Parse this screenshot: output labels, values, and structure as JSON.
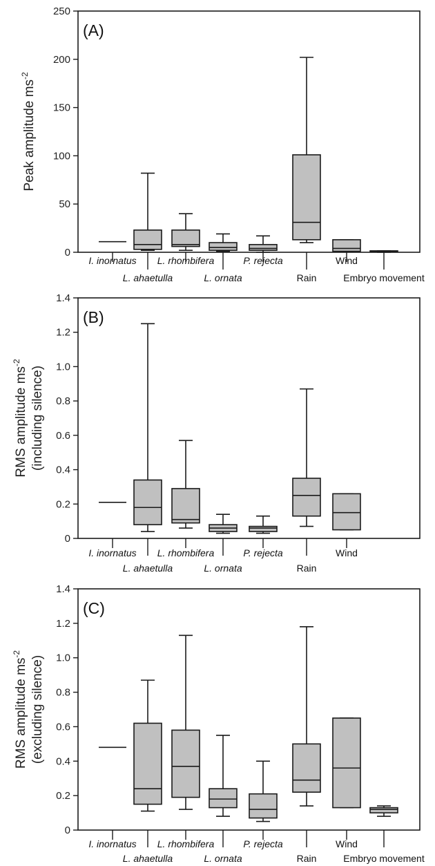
{
  "chart_data": [
    {
      "type": "box",
      "panel_label": "(A)",
      "ylabel_line1": "Peak amplitude ms",
      "ylabel_sup": "-2",
      "ylabel_line2": "",
      "ylim": [
        0,
        250
      ],
      "yticks": [
        0,
        50,
        100,
        150,
        200,
        250
      ],
      "ytick_labels": [
        "0",
        "50",
        "100",
        "150",
        "200",
        "250"
      ],
      "categories": [
        {
          "label": "I. inornatus",
          "italic": true,
          "row": "top"
        },
        {
          "label": "L. ahaetulla",
          "italic": true,
          "row": "bottom"
        },
        {
          "label": "L. rhombifera",
          "italic": true,
          "row": "top"
        },
        {
          "label": "L. ornata",
          "italic": true,
          "row": "bottom"
        },
        {
          "label": "P. rejecta",
          "italic": true,
          "row": "top"
        },
        {
          "label": "Rain",
          "italic": false,
          "row": "bottom"
        },
        {
          "label": "Wind",
          "italic": false,
          "row": "top"
        },
        {
          "label": "Embryo movement",
          "italic": false,
          "row": "bottom"
        }
      ],
      "boxes": [
        {
          "min": 11,
          "q1": 11,
          "median": 11,
          "q3": 11,
          "max": 11,
          "line_only": true
        },
        {
          "min": 2,
          "q1": 3,
          "median": 8,
          "q3": 23,
          "max": 82
        },
        {
          "min": 2,
          "q1": 6,
          "median": 8,
          "q3": 23,
          "max": 40
        },
        {
          "min": 1,
          "q1": 2,
          "median": 5,
          "q3": 10,
          "max": 19
        },
        {
          "min": 0,
          "q1": 2,
          "median": 4,
          "q3": 8,
          "max": 17
        },
        {
          "min": 10,
          "q1": 13,
          "median": 31,
          "q3": 101,
          "max": 202
        },
        {
          "min": 1,
          "q1": 1,
          "median": 4,
          "q3": 13,
          "max": 13
        },
        {
          "min": 0,
          "q1": 0.5,
          "median": 1,
          "q3": 1.5,
          "max": 1.5
        }
      ]
    },
    {
      "type": "box",
      "panel_label": "(B)",
      "ylabel_line1": "RMS amplitude ms",
      "ylabel_sup": "-2",
      "ylabel_line2": "(including silence)",
      "ylim": [
        0,
        1.4
      ],
      "yticks": [
        0,
        0.2,
        0.4,
        0.6,
        0.8,
        1.0,
        1.2,
        1.4
      ],
      "ytick_labels": [
        "0",
        "0.2",
        "0.4",
        "0.6",
        "0.8",
        "1.0",
        "1.2",
        "1.4"
      ],
      "categories": [
        {
          "label": "I. inornatus",
          "italic": true,
          "row": "top"
        },
        {
          "label": "L. ahaetulla",
          "italic": true,
          "row": "bottom"
        },
        {
          "label": "L. rhombifera",
          "italic": true,
          "row": "top"
        },
        {
          "label": "L. ornata",
          "italic": true,
          "row": "bottom"
        },
        {
          "label": "P. rejecta",
          "italic": true,
          "row": "top"
        },
        {
          "label": "Rain",
          "italic": false,
          "row": "bottom"
        },
        {
          "label": "Wind",
          "italic": false,
          "row": "top"
        }
      ],
      "boxes": [
        {
          "min": 0.21,
          "q1": 0.21,
          "median": 0.21,
          "q3": 0.21,
          "max": 0.21,
          "line_only": true
        },
        {
          "min": 0.04,
          "q1": 0.08,
          "median": 0.18,
          "q3": 0.34,
          "max": 1.25
        },
        {
          "min": 0.06,
          "q1": 0.09,
          "median": 0.11,
          "q3": 0.29,
          "max": 0.57
        },
        {
          "min": 0.03,
          "q1": 0.04,
          "median": 0.06,
          "q3": 0.08,
          "max": 0.14
        },
        {
          "min": 0.03,
          "q1": 0.04,
          "median": 0.06,
          "q3": 0.07,
          "max": 0.13
        },
        {
          "min": 0.07,
          "q1": 0.13,
          "median": 0.25,
          "q3": 0.35,
          "max": 0.87
        },
        {
          "min": 0.05,
          "q1": 0.05,
          "median": 0.15,
          "q3": 0.26,
          "max": 0.26
        }
      ]
    },
    {
      "type": "box",
      "panel_label": "(C)",
      "ylabel_line1": "RMS amplitude ms",
      "ylabel_sup": "-2",
      "ylabel_line2": "(excluding silence)",
      "ylim": [
        0,
        1.4
      ],
      "yticks": [
        0,
        0.2,
        0.4,
        0.6,
        0.8,
        1.0,
        1.2,
        1.4
      ],
      "ytick_labels": [
        "0",
        "0.2",
        "0.4",
        "0.6",
        "0.8",
        "1.0",
        "1.2",
        "1.4"
      ],
      "categories": [
        {
          "label": "I. inornatus",
          "italic": true,
          "row": "top"
        },
        {
          "label": "L. ahaetulla",
          "italic": true,
          "row": "bottom"
        },
        {
          "label": "L. rhombifera",
          "italic": true,
          "row": "top"
        },
        {
          "label": "L. ornata",
          "italic": true,
          "row": "bottom"
        },
        {
          "label": "P. rejecta",
          "italic": true,
          "row": "top"
        },
        {
          "label": "Rain",
          "italic": false,
          "row": "bottom"
        },
        {
          "label": "Wind",
          "italic": false,
          "row": "top"
        },
        {
          "label": "Embryo movement",
          "italic": false,
          "row": "bottom"
        }
      ],
      "boxes": [
        {
          "min": 0.48,
          "q1": 0.48,
          "median": 0.48,
          "q3": 0.48,
          "max": 0.48,
          "line_only": true
        },
        {
          "min": 0.11,
          "q1": 0.15,
          "median": 0.24,
          "q3": 0.62,
          "max": 0.87
        },
        {
          "min": 0.12,
          "q1": 0.19,
          "median": 0.37,
          "q3": 0.58,
          "max": 1.13
        },
        {
          "min": 0.08,
          "q1": 0.13,
          "median": 0.18,
          "q3": 0.24,
          "max": 0.55
        },
        {
          "min": 0.05,
          "q1": 0.07,
          "median": 0.12,
          "q3": 0.21,
          "max": 0.4
        },
        {
          "min": 0.14,
          "q1": 0.22,
          "median": 0.29,
          "q3": 0.5,
          "max": 1.18
        },
        {
          "min": 0.13,
          "q1": 0.13,
          "median": 0.36,
          "q3": 0.65,
          "max": 0.65
        },
        {
          "min": 0.08,
          "q1": 0.1,
          "median": 0.12,
          "q3": 0.13,
          "max": 0.14
        }
      ]
    }
  ],
  "colors": {
    "box_fill": "#c0c0c0",
    "stroke": "#1a1a1a",
    "text": "#222222"
  }
}
